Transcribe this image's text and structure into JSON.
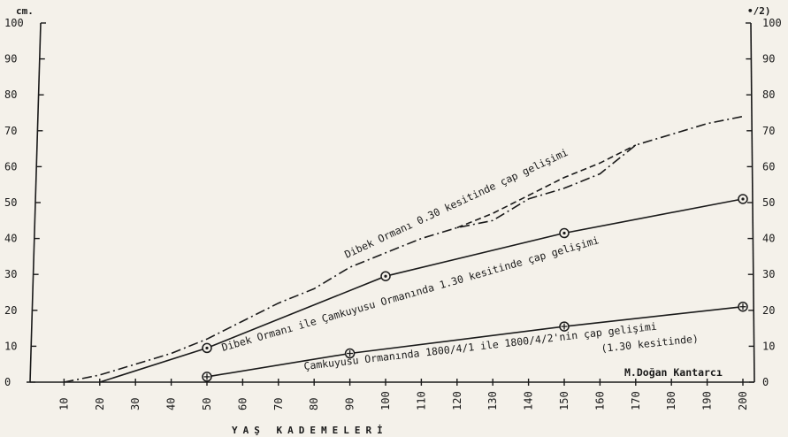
{
  "chart_data": {
    "type": "line",
    "title": "",
    "xlabel": "YAŞ KADEMELERİ",
    "ylabel_left": "cm.",
    "ylabel_right": "•/2)",
    "x_ticks": [
      "10",
      "20",
      "30",
      "40",
      "50",
      "60",
      "70",
      "80",
      "90",
      "100",
      "110",
      "120",
      "130",
      "140",
      "150",
      "160",
      "170",
      "180",
      "190",
      "200"
    ],
    "y_ticks": [
      "0",
      "10",
      "20",
      "30",
      "40",
      "50",
      "60",
      "70",
      "80",
      "90",
      "100"
    ],
    "xlim": [
      0,
      200
    ],
    "ylim": [
      0,
      100
    ],
    "grid": false,
    "series": [
      {
        "style": "dash-dot",
        "marker": "none",
        "x": [
          10,
          20,
          30,
          40,
          50,
          60,
          70,
          80,
          90,
          100,
          110,
          120,
          130,
          140,
          150,
          160,
          170,
          180,
          190,
          200
        ],
        "y": [
          0,
          2,
          5,
          8,
          12,
          17,
          22,
          26,
          32,
          36,
          40,
          43,
          45,
          51,
          54,
          58,
          66,
          69,
          72,
          74
        ]
      },
      {
        "style": "dashed",
        "marker": "none",
        "x": [
          120,
          130,
          140,
          150,
          160,
          170
        ],
        "y": [
          43,
          47,
          52,
          57,
          61,
          66
        ]
      },
      {
        "style": "solid",
        "marker": "circle-dot",
        "x": [
          20,
          50,
          100,
          150,
          200
        ],
        "y": [
          0,
          9.5,
          29.5,
          41.5,
          51
        ]
      },
      {
        "style": "solid",
        "marker": "circle-plus",
        "x": [
          50,
          90,
          150,
          200
        ],
        "y": [
          1.5,
          8,
          15.5,
          21
        ]
      }
    ],
    "annotations": [
      "Dibek Ormanı 0.30 kesitinde çap gelişimi",
      "Dibek Ormanı ile Çamkuyusu Ormanında 1.30 kesitinde çap gelişimi",
      "Çamkuyusu Ormanında 1800/4/1 ile 1800/4/2'nin çap gelişimi",
      "(1.30 kesitinde)",
      "M.Doğan Kantarcı"
    ]
  }
}
